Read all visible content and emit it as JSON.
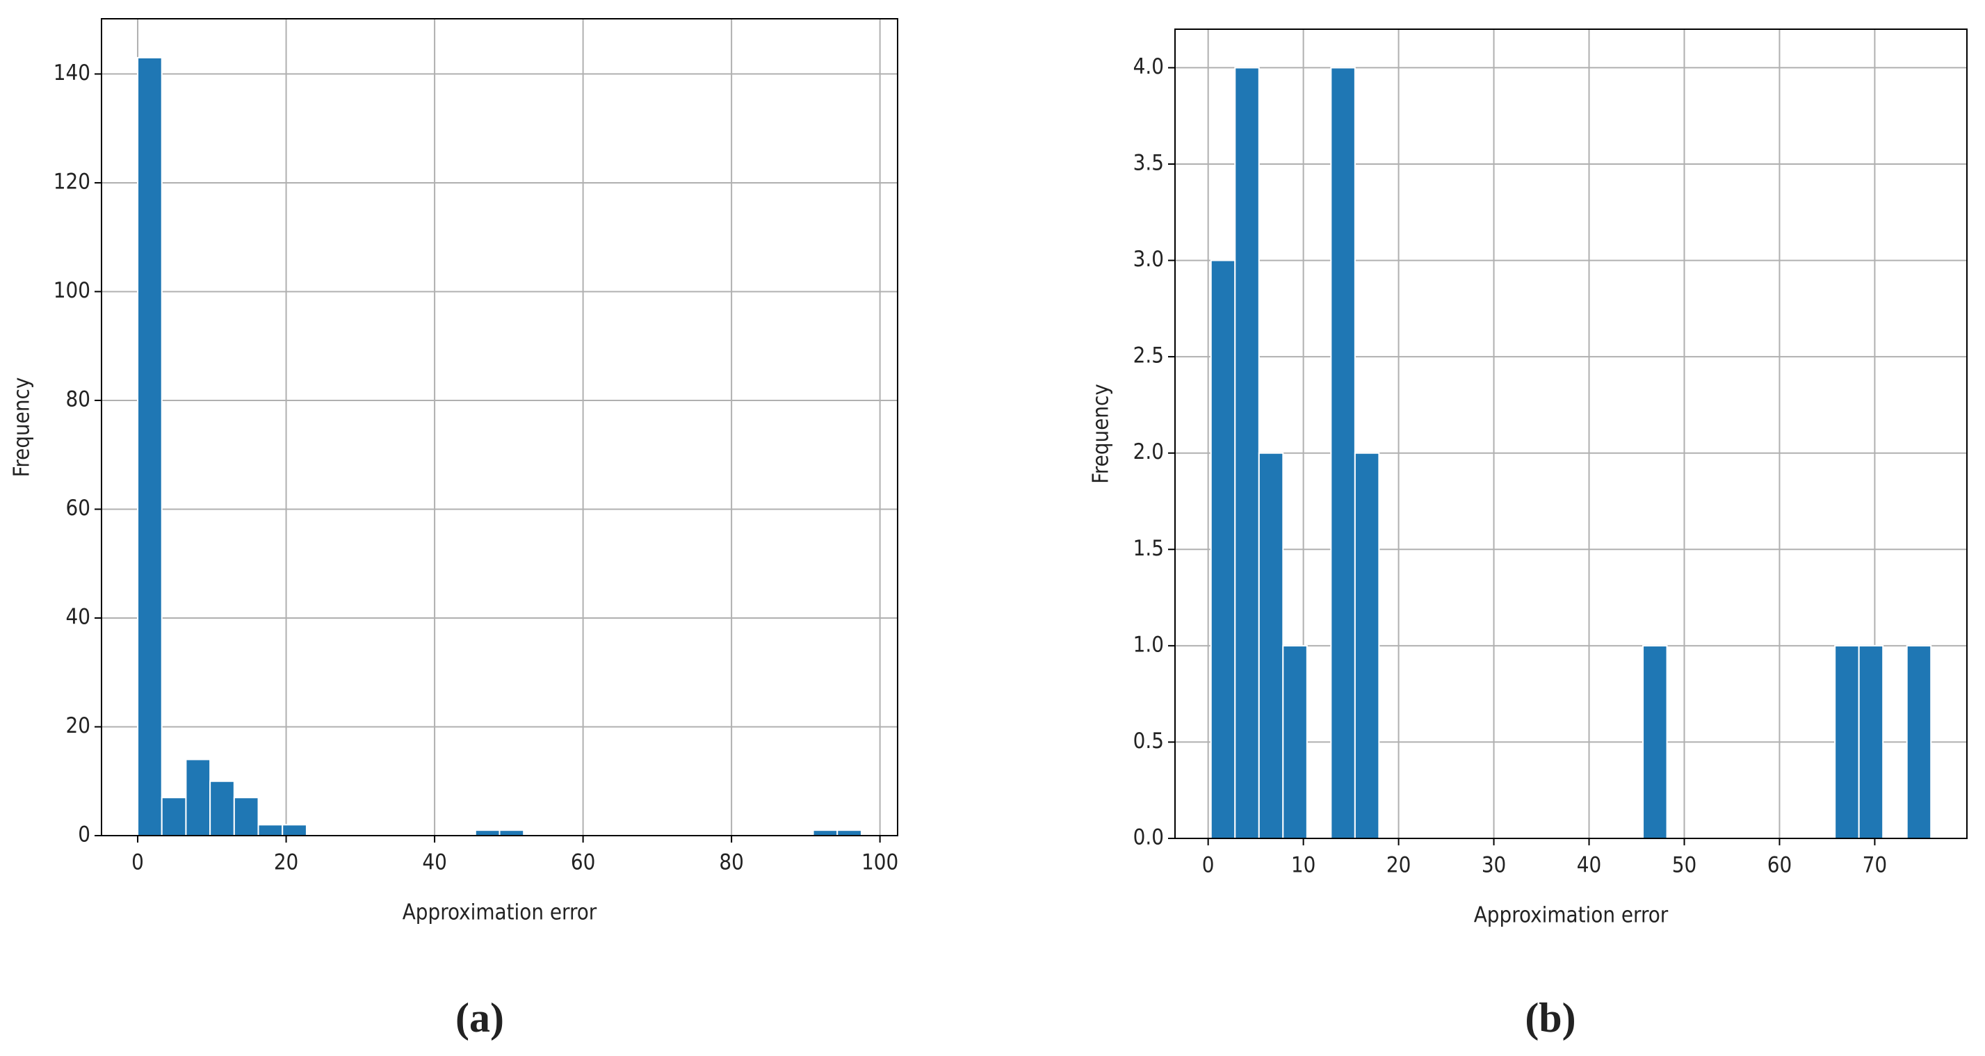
{
  "chart_data": [
    {
      "type": "histogram",
      "caption": "(a)",
      "xlabel": "Approximation error",
      "ylabel": "Frequency",
      "color": "#1f77b4",
      "grid": true,
      "bins": [
        0,
        3.25,
        6.5,
        9.75,
        13,
        16.25,
        19.5,
        22.75,
        26,
        29.25,
        32.5,
        35.75,
        39,
        42.25,
        45.5,
        48.75,
        52,
        55.25,
        58.5,
        61.75,
        65,
        68.25,
        71.5,
        74.75,
        78,
        81.25,
        84.5,
        87.75,
        91,
        94.25,
        97.5
      ],
      "values": [
        143,
        7,
        14,
        10,
        7,
        2,
        2,
        0,
        0,
        0,
        0,
        0,
        0,
        0,
        1,
        1,
        0,
        0,
        0,
        0,
        0,
        0,
        0,
        0,
        0,
        0,
        0,
        0,
        1,
        1
      ],
      "xlim": [
        -4.875,
        102.375
      ],
      "ylim": [
        0,
        150.15
      ],
      "xticks": [
        0,
        20,
        40,
        60,
        80,
        100
      ],
      "yticks": [
        0,
        20,
        40,
        60,
        80,
        100,
        120,
        140
      ]
    },
    {
      "type": "histogram",
      "caption": "(b)",
      "xlabel": "Approximation error",
      "ylabel": "Frequency",
      "color": "#1f77b4",
      "grid": true,
      "bins": [
        0.3,
        2.82,
        5.34,
        7.86,
        10.38,
        12.9,
        15.42,
        17.94,
        20.46,
        22.98,
        25.5,
        28.02,
        30.54,
        33.06,
        35.58,
        38.1,
        40.62,
        43.14,
        45.66,
        48.18,
        50.7,
        53.22,
        55.74,
        58.26,
        60.78,
        63.3,
        65.82,
        68.34,
        70.86,
        73.38,
        75.9
      ],
      "values": [
        3,
        4,
        2,
        1,
        0,
        4,
        2,
        0,
        0,
        0,
        0,
        0,
        0,
        0,
        0,
        0,
        0,
        0,
        1,
        0,
        0,
        0,
        0,
        0,
        0,
        0,
        1,
        1,
        0,
        1
      ],
      "xlim": [
        -3.48,
        79.68
      ],
      "ylim": [
        0,
        4.2
      ],
      "xticks": [
        0,
        10,
        20,
        30,
        40,
        50,
        60,
        70
      ],
      "yticks": [
        {
          "value": 0,
          "label": "0.0"
        },
        {
          "value": 0.5,
          "label": "0.5"
        },
        {
          "value": 1,
          "label": "1.0"
        },
        {
          "value": 1.5,
          "label": "1.5"
        },
        {
          "value": 2,
          "label": "2.0"
        },
        {
          "value": 2.5,
          "label": "2.5"
        },
        {
          "value": 3,
          "label": "3.0"
        },
        {
          "value": 3.5,
          "label": "3.5"
        },
        {
          "value": 4,
          "label": "4.0"
        }
      ]
    }
  ]
}
